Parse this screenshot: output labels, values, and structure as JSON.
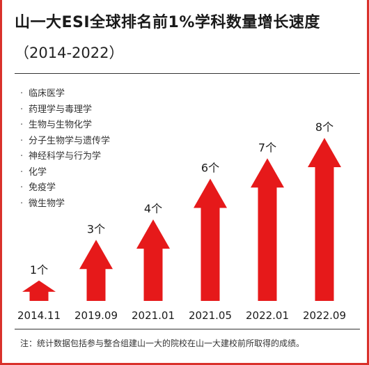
{
  "title": "山一大ESI全球排名前1%学科数量增长速度",
  "subtitle": "（2014-2022）",
  "subjects": [
    "临床医学",
    "药理学与毒理学",
    "生物与生物化学",
    "分子生物学与遗传学",
    "神经科学与行为学",
    "化学",
    "免疫学",
    "微生物学"
  ],
  "footnote": "注：统计数据包括参与整合组建山一大的院校在山一大建校前所取得的成绩。",
  "unit": "个",
  "colors": {
    "arrow": "#e6191a",
    "border": "#d9312b"
  },
  "chart_data": {
    "type": "bar",
    "marker": "arrow",
    "categories": [
      "2014.11",
      "2019.09",
      "2021.01",
      "2021.05",
      "2022.01",
      "2022.09"
    ],
    "values": [
      1,
      3,
      4,
      6,
      7,
      8
    ],
    "data_labels": [
      "1个",
      "3个",
      "4个",
      "6个",
      "7个",
      "8个"
    ],
    "ylim": [
      0,
      8
    ]
  }
}
